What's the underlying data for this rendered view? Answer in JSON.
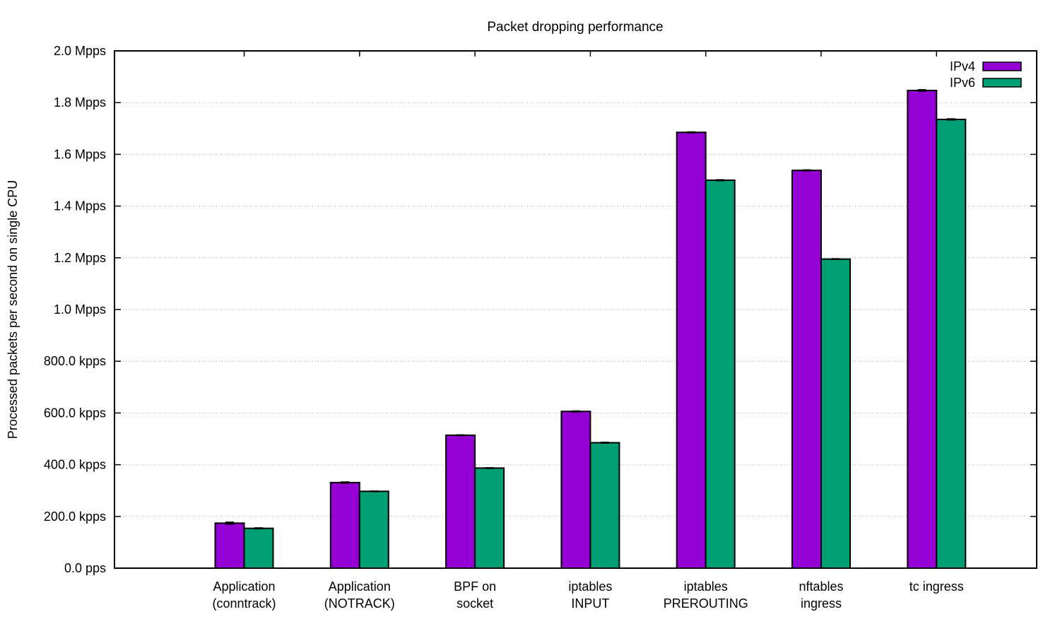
{
  "chart_data": {
    "type": "bar",
    "title": "Packet dropping performance",
    "ylabel": "Processed packets per second on single CPU",
    "xlabel": "",
    "ylim": [
      0,
      2000000
    ],
    "y_ticks": [
      {
        "value": 0,
        "label": "0.0  pps"
      },
      {
        "value": 200000,
        "label": "200.0 kpps"
      },
      {
        "value": 400000,
        "label": "400.0 kpps"
      },
      {
        "value": 600000,
        "label": "600.0 kpps"
      },
      {
        "value": 800000,
        "label": "800.0 kpps"
      },
      {
        "value": 1000000,
        "label": "1.0 Mpps"
      },
      {
        "value": 1200000,
        "label": "1.2 Mpps"
      },
      {
        "value": 1400000,
        "label": "1.4 Mpps"
      },
      {
        "value": 1600000,
        "label": "1.6 Mpps"
      },
      {
        "value": 1800000,
        "label": "1.8 Mpps"
      },
      {
        "value": 2000000,
        "label": "2.0 Mpps"
      }
    ],
    "categories": [
      [
        "Application",
        "(conntrack)"
      ],
      [
        "Application",
        "(NOTRACK)"
      ],
      [
        "BPF on",
        "socket"
      ],
      [
        "iptables",
        "INPUT"
      ],
      [
        "iptables",
        "PREROUTING"
      ],
      [
        "nftables",
        "ingress"
      ],
      [
        "tc ingress"
      ]
    ],
    "series": [
      {
        "name": "IPv4",
        "color": "#9400d3",
        "values": [
          174000,
          331000,
          514000,
          606000,
          1685000,
          1538000,
          1847000
        ],
        "errors": [
          4000,
          2500,
          1500,
          2000,
          2000,
          2000,
          3000
        ]
      },
      {
        "name": "IPv6",
        "color": "#009e73",
        "values": [
          154000,
          297000,
          387000,
          485000,
          1500000,
          1195000,
          1735000
        ],
        "errors": [
          2000,
          1500,
          1500,
          2000,
          2000,
          1500,
          2500
        ]
      }
    ],
    "grid": "horizontal-dotted",
    "legend_position": "top-right"
  }
}
